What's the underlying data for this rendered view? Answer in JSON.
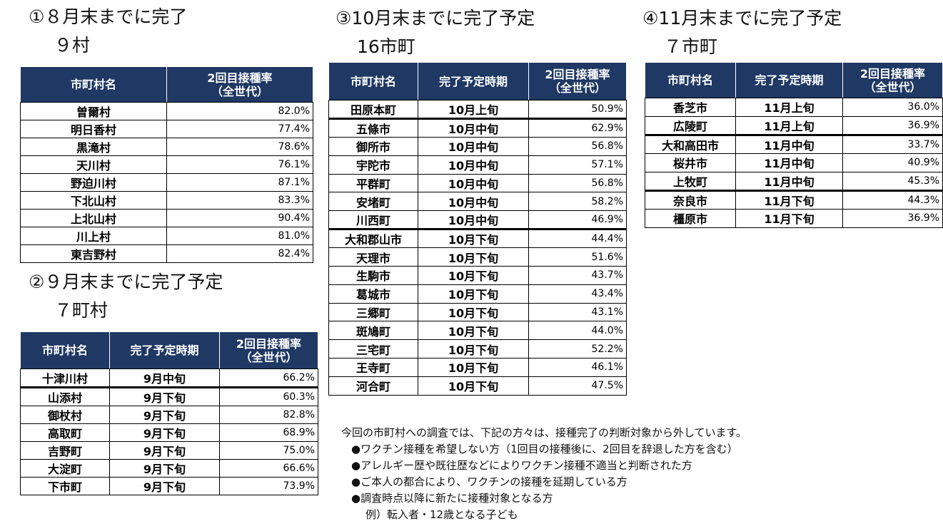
{
  "sections": [
    {
      "heading": [
        "①８月末までに完了",
        "９村"
      ],
      "table": {
        "header": [
          "市町村名",
          "2回目接種率\n（全世代）"
        ],
        "rows": [
          [
            "曽爾村",
            "82.0%"
          ],
          [
            "明日香村",
            "77.4%"
          ],
          [
            "黒滝村",
            "78.6%"
          ],
          [
            "天川村",
            "76.1%"
          ],
          [
            "野迫川村",
            "87.1%"
          ],
          [
            "下北山村",
            "83.3%"
          ],
          [
            "上北山村",
            "90.4%"
          ],
          [
            "川上村",
            "81.0%"
          ],
          [
            "東吉野村",
            "82.4%"
          ]
        ]
      }
    },
    {
      "heading": [
        "②９月末までに完了予定",
        "７町村"
      ],
      "table": {
        "header": [
          "市町村名",
          "完了予定時期",
          "2回目接種率\n（全世代）"
        ],
        "rows": [
          [
            "十津川村",
            "9月中旬",
            "66.2%"
          ],
          [
            "山添村",
            "9月下旬",
            "60.3%"
          ],
          [
            "御杖村",
            "9月下旬",
            "82.8%"
          ],
          [
            "高取町",
            "9月下旬",
            "68.9%"
          ],
          [
            "吉野町",
            "9月下旬",
            "75.0%"
          ],
          [
            "大淀町",
            "9月下旬",
            "66.6%"
          ],
          [
            "下市町",
            "9月下旬",
            "73.9%"
          ]
        ]
      }
    },
    {
      "heading": [
        "③10月末までに完了予定",
        "16市町"
      ],
      "table": {
        "header": [
          "市町村名",
          "完了予定時期",
          "2回目接種率\n（全世代）"
        ],
        "rows": [
          [
            "田原本町",
            "10月上旬",
            "50.9%"
          ],
          [
            "五條市",
            "10月中旬",
            "62.9%"
          ],
          [
            "御所市",
            "10月中旬",
            "56.8%"
          ],
          [
            "宇陀市",
            "10月中旬",
            "57.1%"
          ],
          [
            "平群町",
            "10月中旬",
            "56.8%"
          ],
          [
            "安堵町",
            "10月中旬",
            "58.2%"
          ],
          [
            "川西町",
            "10月中旬",
            "46.9%"
          ],
          [
            "大和郡山市",
            "10月下旬",
            "44.4%"
          ],
          [
            "天理市",
            "10月下旬",
            "51.6%"
          ],
          [
            "生駒市",
            "10月下旬",
            "43.7%"
          ],
          [
            "葛城市",
            "10月下旬",
            "43.4%"
          ],
          [
            "三郷町",
            "10月下旬",
            "43.1%"
          ],
          [
            "斑鳩町",
            "10月下旬",
            "44.0%"
          ],
          [
            "三宅町",
            "10月下旬",
            "52.2%"
          ],
          [
            "王寺町",
            "10月下旬",
            "46.1%"
          ],
          [
            "河合町",
            "10月下旬",
            "47.5%"
          ]
        ]
      }
    },
    {
      "heading": [
        "④11月末までに完了予定",
        "７市町"
      ],
      "table": {
        "header": [
          "市町村名",
          "完了予定時期",
          "2回目接種率\n（全世代）"
        ],
        "rows": [
          [
            "香芝市",
            "11月上旬",
            "36.0%"
          ],
          [
            "広陵町",
            "11月上旬",
            "36.9%"
          ],
          [
            "大和高田市",
            "11月中旬",
            "33.7%"
          ],
          [
            "桜井市",
            "11月中旬",
            "40.9%"
          ],
          [
            "上牧町",
            "11月中旬",
            "45.3%"
          ],
          [
            "奈良市",
            "11月下旬",
            "44.3%"
          ],
          [
            "橿原市",
            "11月下旬",
            "36.9%"
          ]
        ]
      }
    }
  ],
  "notes": {
    "intro": "今回の市町村への調査では、下記の方々は、接種完了の判断対象から外しています。",
    "items": [
      "●ワクチン接種を希望しない方（1回目の接種後に、2回目を辞退した方を含む）",
      "●アレルギー歴や既往歴などによりワクチン接種不適当と判断された方",
      "●ご本人の都合により、ワクチンの接種を延期している方",
      "●調査時点以降に新たに接種対象となる方"
    ],
    "example": "例）転入者・12歳となる子ども"
  }
}
